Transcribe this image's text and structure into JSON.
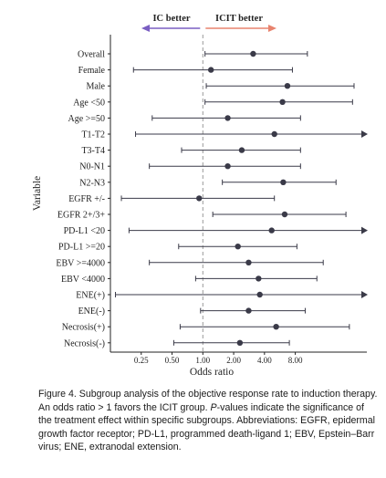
{
  "chart_data": {
    "type": "forest",
    "xlabel": "Odds ratio",
    "ylabel": "Variable",
    "xscale": "log2",
    "xlim": [
      0.125,
      40
    ],
    "xticks": [
      {
        "value": 0.25,
        "label": "0.25"
      },
      {
        "value": 0.5,
        "label": "0.50"
      },
      {
        "value": 1,
        "label": "1.00"
      },
      {
        "value": 2,
        "label": "2.00"
      },
      {
        "value": 4,
        "label": "4.00"
      },
      {
        "value": 8,
        "label": "8.00"
      }
    ],
    "reference_line": 1,
    "direction_labels": {
      "left": {
        "text": "IC better",
        "color": "#7a5ec2"
      },
      "right": {
        "text": "ICIT better",
        "color": "#e8836e"
      }
    },
    "rows": [
      {
        "label": "Overall",
        "or": 3.1,
        "lo": 1.05,
        "hi": 10.5,
        "arrow": false
      },
      {
        "label": "Female",
        "or": 1.2,
        "lo": 0.21,
        "hi": 7.5,
        "arrow": false
      },
      {
        "label": "Male",
        "or": 6.7,
        "lo": 1.08,
        "hi": 30,
        "arrow": false
      },
      {
        "label": "Age <50",
        "or": 6.0,
        "lo": 1.05,
        "hi": 29,
        "arrow": false
      },
      {
        "label": "Age >=50",
        "or": 1.75,
        "lo": 0.32,
        "hi": 9.0,
        "arrow": false
      },
      {
        "label": "T1-T2",
        "or": 5.0,
        "lo": 0.22,
        "hi": 40,
        "arrow": true
      },
      {
        "label": "T3-T4",
        "or": 2.4,
        "lo": 0.62,
        "hi": 9.0,
        "arrow": false
      },
      {
        "label": "N0-N1",
        "or": 1.75,
        "lo": 0.3,
        "hi": 9.0,
        "arrow": false
      },
      {
        "label": "N2-N3",
        "or": 6.1,
        "lo": 1.55,
        "hi": 20,
        "arrow": false
      },
      {
        "label": "EGFR +/-",
        "or": 0.92,
        "lo": 0.16,
        "hi": 5.0,
        "arrow": false
      },
      {
        "label": "EGFR 2+/3+",
        "or": 6.3,
        "lo": 1.25,
        "hi": 25,
        "arrow": false
      },
      {
        "label": "PD-L1 <20",
        "or": 4.7,
        "lo": 0.19,
        "hi": 40,
        "arrow": true
      },
      {
        "label": "PD-L1 >=20",
        "or": 2.2,
        "lo": 0.58,
        "hi": 8.3,
        "arrow": false
      },
      {
        "label": "EBV >=4000",
        "or": 2.8,
        "lo": 0.3,
        "hi": 15,
        "arrow": false
      },
      {
        "label": "EBV <4000",
        "or": 3.5,
        "lo": 0.85,
        "hi": 13,
        "arrow": false
      },
      {
        "label": "ENE(+)",
        "or": 3.6,
        "lo": 0.14,
        "hi": 40,
        "arrow": true
      },
      {
        "label": "ENE(-)",
        "or": 2.8,
        "lo": 0.95,
        "hi": 10,
        "arrow": false
      },
      {
        "label": "Necrosis(+)",
        "or": 5.2,
        "lo": 0.6,
        "hi": 27,
        "arrow": false
      },
      {
        "label": "Necrosis(-)",
        "or": 2.3,
        "lo": 0.52,
        "hi": 7.0,
        "arrow": false
      }
    ]
  },
  "caption": {
    "part1": "Figure 4. Subgroup analysis of the objective response rate to induction therapy. An odds ratio > 1 favors the ICIT group. ",
    "part2_italic": "P",
    "part3": "-values indicate the significance of the treatment effect within specific subgroups. Abbreviations: EGFR, epidermal growth factor receptor; PD-L1, programmed death-ligand 1; EBV, Epstein–Barr virus; ENE, extranodal extension."
  }
}
